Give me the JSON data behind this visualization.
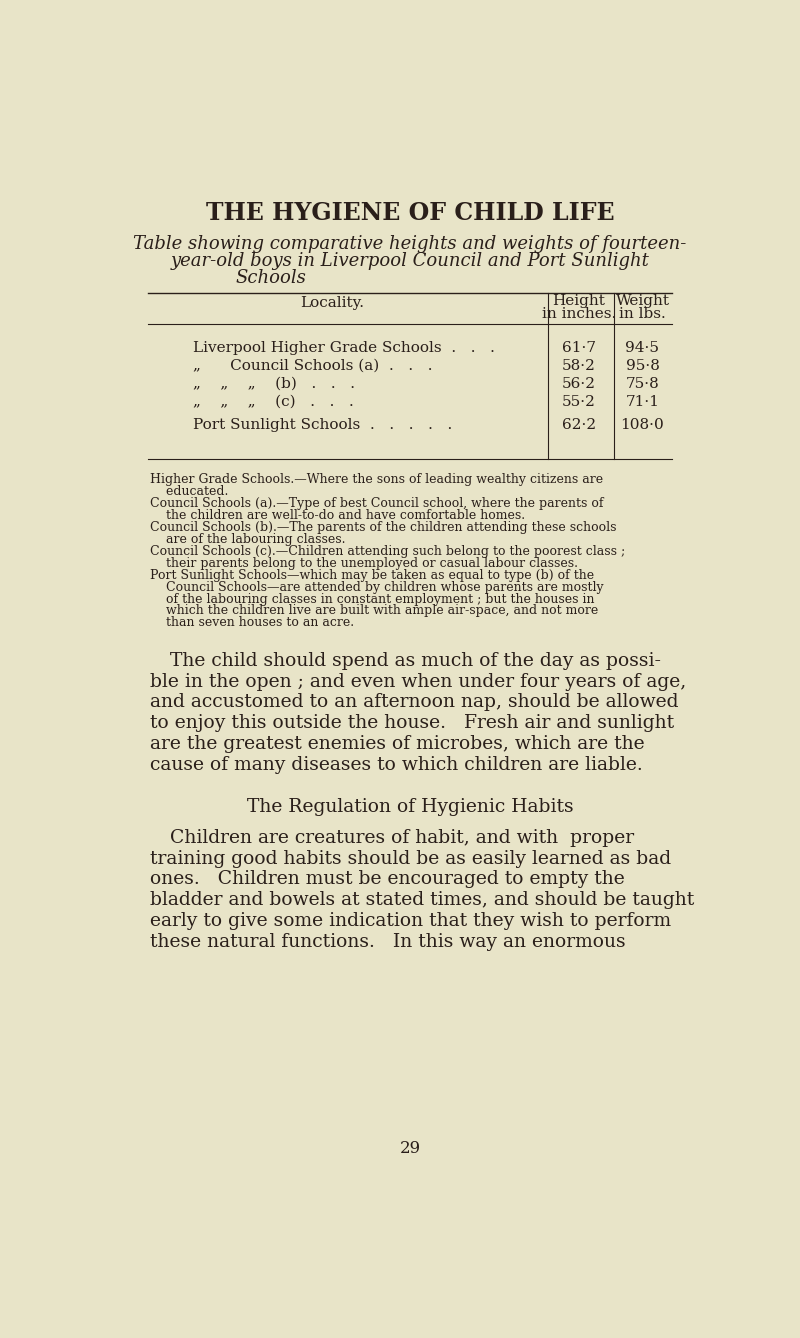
{
  "bg_color": "#e8e4c8",
  "text_color": "#2a1f1a",
  "page_title": "THE HYGIENE OF CHILD LIFE",
  "subtitle_line1": "Table showing comparative heights and weights of fourteen-",
  "subtitle_line2": "year-old boys in Liverpool Council and Port Sunlight",
  "subtitle_line3": "Schools",
  "col_header1": "Locality.",
  "col_header2_line1": "Height",
  "col_header2_line2": "in inches.",
  "col_header3_line1": "Weight",
  "col_header3_line2": "in lbs.",
  "loc_texts": [
    "Liverpool Higher Grade Schools  .   .   .",
    "„      Council Schools (a)  .   .   .",
    "„    „    „    (b)   .   .   .",
    "„    „    „    (c)   .   .   .",
    "Port Sunlight Schools  .   .   .   .   ."
  ],
  "heights_vals": [
    "61·7",
    "58·2",
    "56·2",
    "55·2",
    "62·2"
  ],
  "weights_vals": [
    "94·5",
    "95·8",
    "75·8",
    "71·1",
    "108·0"
  ],
  "footnote_lines": [
    "Higher Grade Schools.—Where the sons of leading wealthy citizens are",
    "    educated.",
    "Council Schools (a).—Type of best Council school, where the parents of",
    "    the children are well-to-do and have comfortable homes.",
    "Council Schools (b).—The parents of the children attending these schools",
    "    are of the labouring classes.",
    "Council Schools (c).—Children attending such belong to the poorest class ;",
    "    their parents belong to the unemployed or casual labour classes.",
    "Port Sunlight Schools—which may be taken as equal to type (b) of the",
    "    Council Schools—are attended by children whose parents are mostly",
    "    of the labouring classes in constant employment ; but the houses in",
    "    which the children live are built with ample air-space, and not more",
    "    than seven houses to an acre."
  ],
  "body1_lines": [
    "The child should spend as much of the day as possi-",
    "ble in the open ; and even when under four years of age,",
    "and accustomed to an afternoon nap, should be allowed",
    "to enjoy this outside the house.   Fresh air and sunlight",
    "are the greatest enemies of microbes, which are the",
    "cause of many diseases to which children are liable."
  ],
  "section_title": "The Regulation of Hygienic Habits",
  "body2_lines": [
    "Children are creatures of habit, and with  proper",
    "training good habits should be as easily learned as bad",
    "ones.   Children must be encouraged to empty the",
    "bladder and bowels at stated times, and should be taught",
    "early to give some indication that they wish to perform",
    "these natural functions.   In this way an enormous"
  ],
  "page_number": "29"
}
